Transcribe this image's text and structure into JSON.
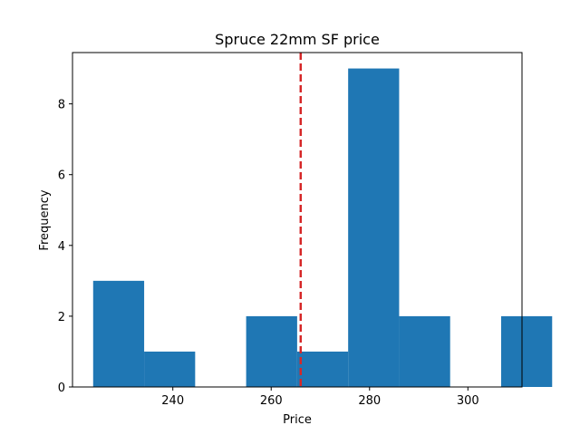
{
  "chart_data": {
    "type": "bar",
    "title": "Spruce 22mm SF price",
    "xlabel": "Price",
    "ylabel": "Frequency",
    "bin_edges": [
      223.8,
      234.17,
      244.54,
      254.91,
      265.28,
      275.65,
      286.02,
      296.39,
      306.76,
      317.13
    ],
    "bins": [
      {
        "start": 223.8,
        "end": 234.17,
        "count": 3
      },
      {
        "start": 234.17,
        "end": 244.54,
        "count": 1
      },
      {
        "start": 244.54,
        "end": 254.91,
        "count": 0
      },
      {
        "start": 254.91,
        "end": 265.28,
        "count": 2
      },
      {
        "start": 265.28,
        "end": 275.65,
        "count": 1
      },
      {
        "start": 275.65,
        "end": 286.02,
        "count": 9
      },
      {
        "start": 286.02,
        "end": 296.39,
        "count": 2
      },
      {
        "start": 296.39,
        "end": 306.76,
        "count": 0
      },
      {
        "start": 306.76,
        "end": 317.13,
        "count": 2
      }
    ],
    "vline": {
      "x": 266,
      "style": "dashed",
      "color": "#d62728"
    },
    "xlim": [
      219.6,
      311.0
    ],
    "ylim": [
      0,
      9.45
    ],
    "xticks": [
      240,
      260,
      280,
      300
    ],
    "yticks": [
      0,
      2,
      4,
      6,
      8
    ],
    "bar_color": "#1f77b4",
    "grid": false,
    "legend": "none"
  }
}
